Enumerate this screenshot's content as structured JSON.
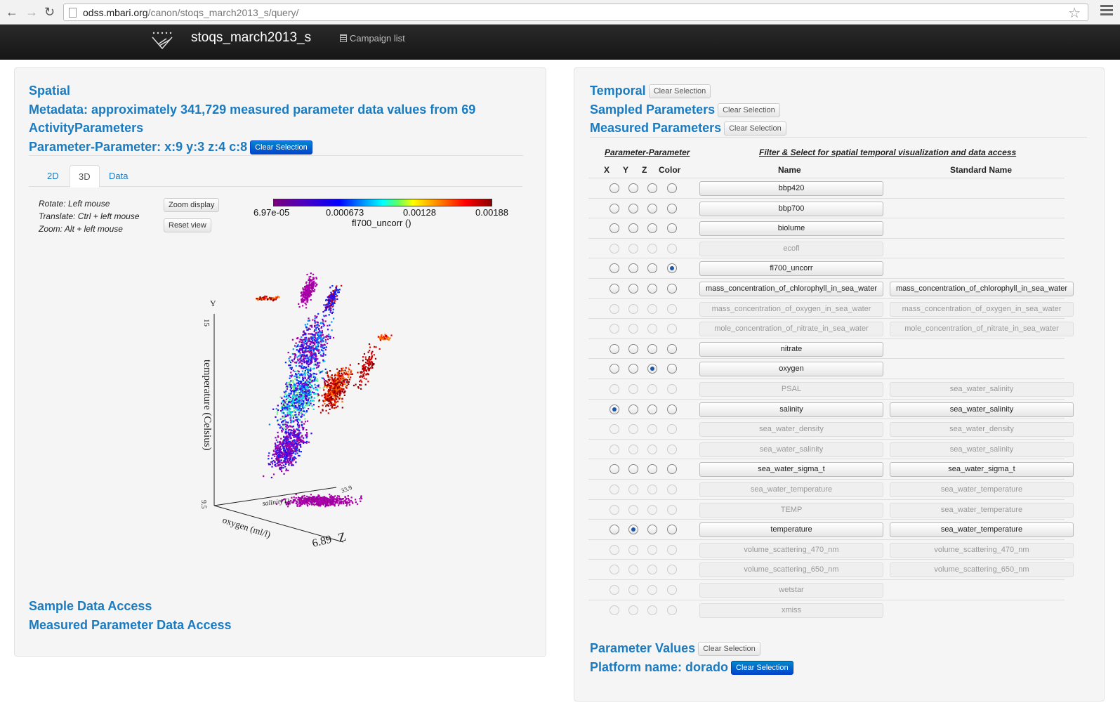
{
  "browser": {
    "url_host": "odss.mbari.org",
    "url_path": "/canon/stoqs_march2013_s/query/"
  },
  "navbar": {
    "brand": "stoqs_march2013_s",
    "campaign_list": "Campaign list"
  },
  "left": {
    "spatial": "Spatial",
    "metadata_line1": "Metadata: approximately 341,729 measured parameter data values from 69",
    "metadata_line2": "ActivityParameters",
    "pp_title": "Parameter-Parameter: x:9 y:3 z:4 c:8",
    "clear_selection": "Clear Selection",
    "tabs": [
      "2D",
      "3D",
      "Data"
    ],
    "help": [
      "Rotate: Left mouse",
      "Translate: Ctrl + left mouse",
      "Zoom: Alt + left mouse"
    ],
    "zoom_display": "Zoom display",
    "reset_view": "Reset view",
    "colorbar": {
      "ticks": [
        "6.97e-05",
        "0.000673",
        "0.00128",
        "0.00188"
      ],
      "label": "fl700_uncorr ()"
    },
    "plot": {
      "y_axis_label": "temperature (Celsius)",
      "y_axis_letter": "Y",
      "y_tick_top": "15",
      "y_tick_bottom": "9.5",
      "x_axis_label": "salinity ()",
      "x_tick": "33.9",
      "z_axis_label": "oxygen (ml/l)",
      "z_axis_letter": "Z",
      "z_tick": "6.89"
    },
    "sample_access": "Sample Data Access",
    "measured_access": "Measured Parameter Data Access"
  },
  "right": {
    "temporal": "Temporal",
    "sampled": "Sampled Parameters",
    "measured": "Measured Parameters",
    "clear_selection": "Clear Selection",
    "pp_link": "Parameter-Parameter",
    "filter_link": "Filter & Select for spatial temporal visualization and data access",
    "col_x": "X",
    "col_y": "Y",
    "col_z": "Z",
    "col_color": "Color",
    "col_name": "Name",
    "col_std": "Standard Name",
    "rows": [
      {
        "name": "bbp420",
        "std": "",
        "enabled": true,
        "sel": ""
      },
      {
        "name": "bbp700",
        "std": "",
        "enabled": true,
        "sel": ""
      },
      {
        "name": "biolume",
        "std": "",
        "enabled": true,
        "sel": ""
      },
      {
        "name": "ecofl",
        "std": "",
        "enabled": false,
        "sel": ""
      },
      {
        "name": "fl700_uncorr",
        "std": "",
        "enabled": true,
        "sel": "c"
      },
      {
        "name": "mass_concentration_of_chlorophyll_in_sea_water",
        "std": "mass_concentration_of_chlorophyll_in_sea_water",
        "enabled": true,
        "sel": ""
      },
      {
        "name": "mass_concentration_of_oxygen_in_sea_water",
        "std": "mass_concentration_of_oxygen_in_sea_water",
        "enabled": false,
        "sel": ""
      },
      {
        "name": "mole_concentration_of_nitrate_in_sea_water",
        "std": "mole_concentration_of_nitrate_in_sea_water",
        "enabled": false,
        "sel": ""
      },
      {
        "name": "nitrate",
        "std": "",
        "enabled": true,
        "sel": ""
      },
      {
        "name": "oxygen",
        "std": "",
        "enabled": true,
        "sel": "z"
      },
      {
        "name": "PSAL",
        "std": "sea_water_salinity",
        "enabled": false,
        "sel": ""
      },
      {
        "name": "salinity",
        "std": "sea_water_salinity",
        "enabled": true,
        "sel": "x"
      },
      {
        "name": "sea_water_density",
        "std": "sea_water_density",
        "enabled": false,
        "sel": ""
      },
      {
        "name": "sea_water_salinity",
        "std": "sea_water_salinity",
        "enabled": false,
        "sel": ""
      },
      {
        "name": "sea_water_sigma_t",
        "std": "sea_water_sigma_t",
        "enabled": true,
        "sel": ""
      },
      {
        "name": "sea_water_temperature",
        "std": "sea_water_temperature",
        "enabled": false,
        "sel": ""
      },
      {
        "name": "TEMP",
        "std": "sea_water_temperature",
        "enabled": false,
        "sel": ""
      },
      {
        "name": "temperature",
        "std": "sea_water_temperature",
        "enabled": true,
        "sel": "y"
      },
      {
        "name": "volume_scattering_470_nm",
        "std": "volume_scattering_470_nm",
        "enabled": false,
        "sel": ""
      },
      {
        "name": "volume_scattering_650_nm",
        "std": "volume_scattering_650_nm",
        "enabled": false,
        "sel": ""
      },
      {
        "name": "wetstar",
        "std": "",
        "enabled": false,
        "sel": ""
      },
      {
        "name": "xmiss",
        "std": "",
        "enabled": false,
        "sel": ""
      }
    ],
    "param_values": "Parameter Values",
    "platform": "Platform name: dorado"
  }
}
